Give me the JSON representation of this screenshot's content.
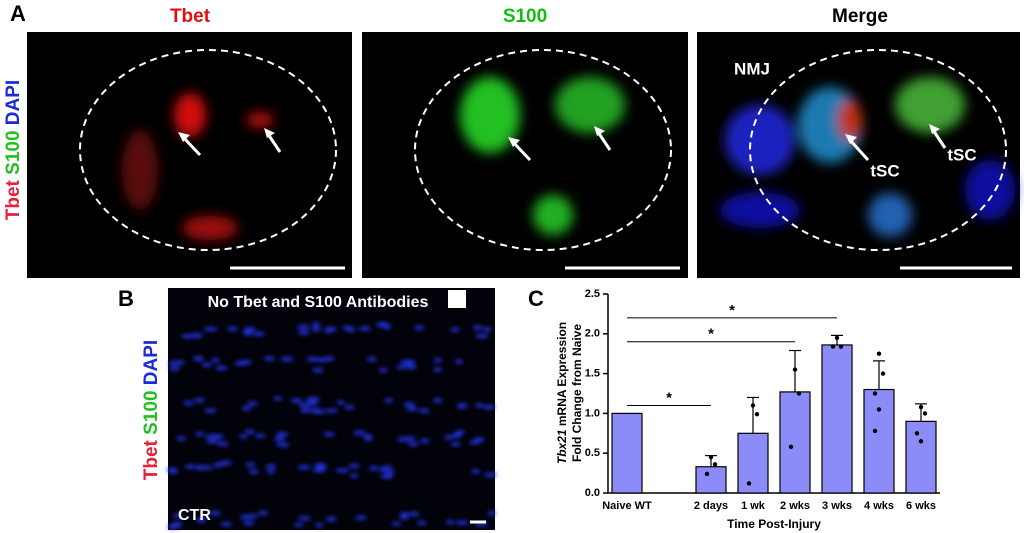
{
  "panel_labels": [
    "A",
    "B",
    "C"
  ],
  "panel_a": {
    "channel_label": [
      {
        "text": "Tbet",
        "color": "#e8203a"
      },
      {
        "text": "S100",
        "color": "#22c022"
      },
      {
        "text": "DAPI",
        "color": "#1a2ad8"
      }
    ],
    "titles": [
      {
        "text": "Tbet",
        "color": "#e01010"
      },
      {
        "text": "S100",
        "color": "#10c010"
      },
      {
        "text": "Merge",
        "color": "#000000"
      }
    ],
    "annotations": [
      "NMJ",
      "tSC",
      "tSC"
    ]
  },
  "panel_b": {
    "channel_label": [
      {
        "text": "Tbet",
        "color": "#e8203a"
      },
      {
        "text": "S100",
        "color": "#22c022"
      },
      {
        "text": "DAPI",
        "color": "#1a2ad8"
      }
    ],
    "caption": "No Tbet and S100 Antibodies",
    "sample": "CTR"
  },
  "chart_data": {
    "type": "bar",
    "categories": [
      "Naive WT",
      null,
      "2 days",
      "1 wk",
      "2 wks",
      "3 wks",
      "4 wks",
      "6 wks"
    ],
    "values": [
      1.0,
      null,
      0.33,
      0.75,
      1.27,
      1.86,
      1.3,
      0.9
    ],
    "errors": [
      null,
      null,
      0.14,
      0.45,
      0.52,
      0.12,
      0.36,
      0.22
    ],
    "points": [
      null,
      null,
      [
        0.45,
        0.36,
        0.24
      ],
      [
        1.1,
        0.99,
        0.12
      ],
      [
        1.55,
        1.25,
        0.58
      ],
      [
        1.95,
        1.84,
        1.84
      ],
      [
        1.75,
        1.5,
        1.25,
        1.05,
        0.78
      ],
      [
        1.08,
        1.0,
        0.75,
        0.65
      ]
    ],
    "color": "#8c8cf8",
    "ylim": [
      0,
      2.5
    ],
    "yticks": [
      {
        "value": 0,
        "label": "0.0"
      },
      {
        "value": 0.5,
        "label": "0.5"
      },
      {
        "value": 1,
        "label": "1.0"
      },
      {
        "value": 1.5,
        "label": "1.5"
      },
      {
        "value": 2,
        "label": "2.0"
      },
      {
        "value": 2.5,
        "label": "2.5"
      }
    ],
    "ylabel": {
      "italic": "Tbx21",
      "rest": " mRNA Expression",
      "line2": "Fold Change from Naive"
    },
    "xlabel": "Time Post-Injury",
    "significance": [
      {
        "from": "Naive WT",
        "to": "2 days",
        "y": 1.1,
        "label": "*"
      },
      {
        "from": "Naive WT",
        "to": "2 wks",
        "y": 1.9,
        "label": "*"
      },
      {
        "from": "Naive WT",
        "to": "3 wks",
        "y": 2.2,
        "label": "*"
      }
    ]
  }
}
